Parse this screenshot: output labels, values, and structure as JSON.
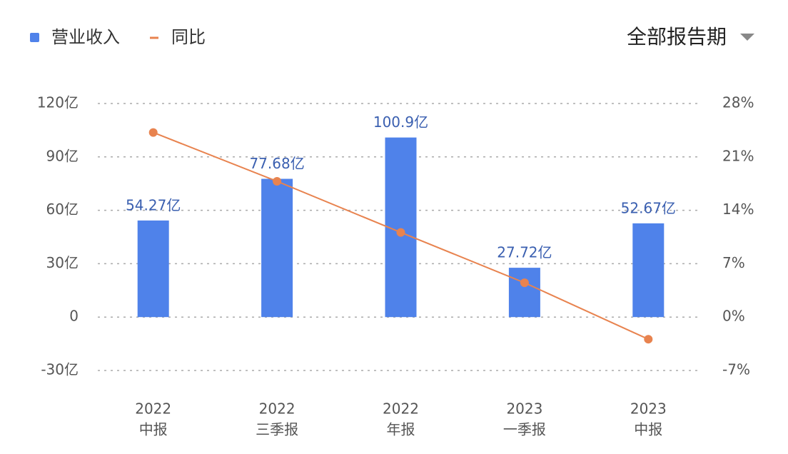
{
  "chart_data": {
    "type": "bar",
    "categories": [
      [
        "2022",
        "中报"
      ],
      [
        "2022",
        "三季报"
      ],
      [
        "2022",
        "年报"
      ],
      [
        "2023",
        "一季报"
      ],
      [
        "2023",
        "中报"
      ]
    ],
    "series": [
      {
        "name": "营业收入",
        "type": "bar",
        "color": "#4f82ea",
        "values": [
          54.27,
          77.68,
          100.9,
          27.72,
          52.67
        ],
        "value_labels": [
          "54.27亿",
          "77.68亿",
          "100.9亿",
          "27.72亿",
          "52.67亿"
        ]
      },
      {
        "name": "同比",
        "type": "line",
        "axis": "y2",
        "color": "#e8834f",
        "values": [
          24.2,
          17.8,
          11.1,
          4.5,
          -2.9
        ]
      }
    ],
    "ylim": [
      -30,
      120
    ],
    "yticks": [
      {
        "value": -30,
        "label": "-30亿"
      },
      0,
      {
        "value": 30,
        "label": "30亿"
      },
      {
        "value": 60,
        "label": "60亿"
      },
      {
        "value": 90,
        "label": "90亿"
      },
      {
        "value": 120,
        "label": "120亿"
      }
    ],
    "y2lim": [
      -7,
      28
    ],
    "y2ticks": [
      {
        "value": -7,
        "label": "-7%"
      },
      {
        "value": 0,
        "label": "0%"
      },
      {
        "value": 7,
        "label": "7%"
      },
      {
        "value": 14,
        "label": "14%"
      },
      {
        "value": 21,
        "label": "21%"
      },
      {
        "value": 28,
        "label": "28%"
      }
    ],
    "grid": true,
    "legend": "top-left",
    "period_selector": "全部报告期"
  }
}
